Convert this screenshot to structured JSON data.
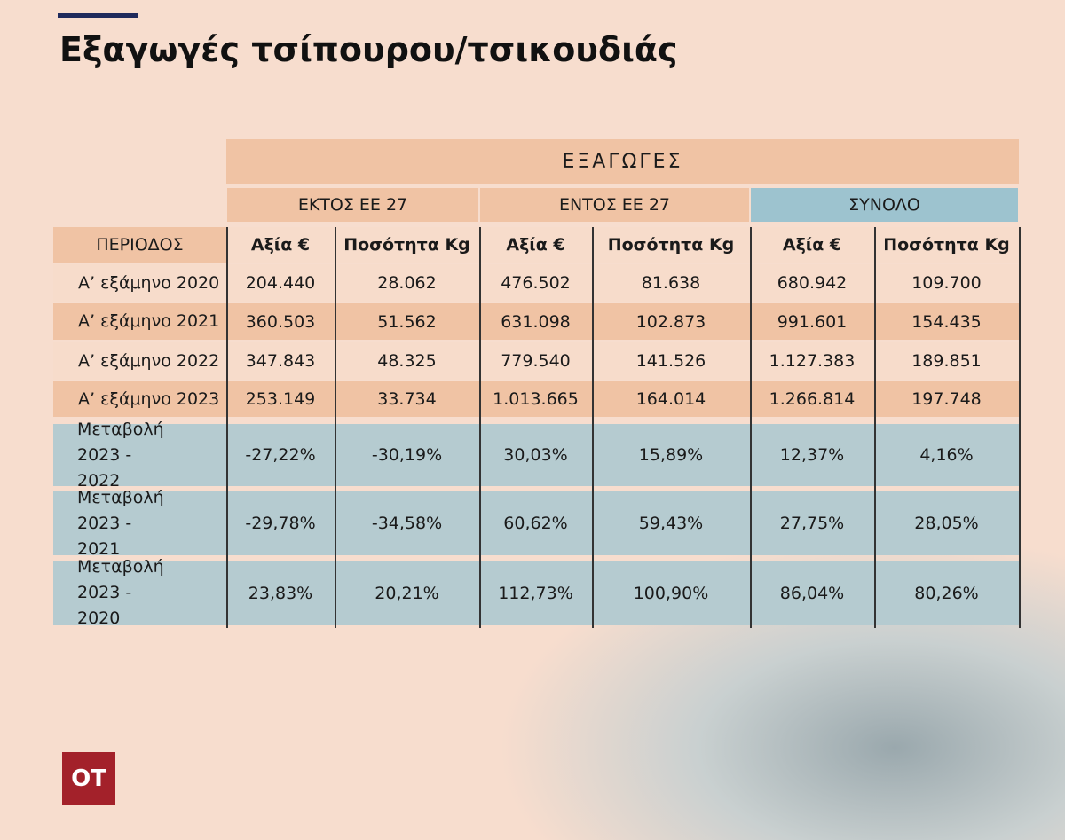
{
  "header": {
    "title": "Εξαγωγές τσίπουρου/τσικουδιάς"
  },
  "table": {
    "group_title": "ΕΞΑΓΩΓΕΣ",
    "groups": [
      "ΕΚΤΟΣ ΕΕ 27",
      "ΕΝΤΟΣ ΕΕ 27",
      "ΣΥΝΟΛΟ"
    ],
    "columns": [
      "ΠΕΡΙΟΔΟΣ",
      "Αξία €",
      "Ποσότητα Kg",
      "Αξία €",
      "Ποσότητα Kg",
      "Αξία €",
      "Ποσότητα Kg"
    ],
    "rows": [
      [
        "Α’ εξάμηνο 2020",
        "204.440",
        "28.062",
        "476.502",
        "81.638",
        "680.942",
        "109.700"
      ],
      [
        "Α’ εξάμηνο 2021",
        "360.503",
        "51.562",
        "631.098",
        "102.873",
        "991.601",
        "154.435"
      ],
      [
        "Α’ εξάμηνο 2022",
        "347.843",
        "48.325",
        "779.540",
        "141.526",
        "1.127.383",
        "189.851"
      ],
      [
        "Α’ εξάμηνο 2023",
        "253.149",
        "33.734",
        "1.013.665",
        "164.014",
        "1.266.814",
        "197.748"
      ],
      [
        "Μεταβολή 2023 - 2022",
        "-27,22%",
        "-30,19%",
        "30,03%",
        "15,89%",
        "12,37%",
        "4,16%"
      ],
      [
        "Μεταβολή 2023 - 2021",
        "-29,78%",
        "-34,58%",
        "60,62%",
        "59,43%",
        "27,75%",
        "28,05%"
      ],
      [
        "Μεταβολή 2023 - 2020",
        "23,83%",
        "20,21%",
        "112,73%",
        "100,90%",
        "86,04%",
        "80,26%"
      ]
    ]
  },
  "logo": {
    "text": "OT"
  }
}
